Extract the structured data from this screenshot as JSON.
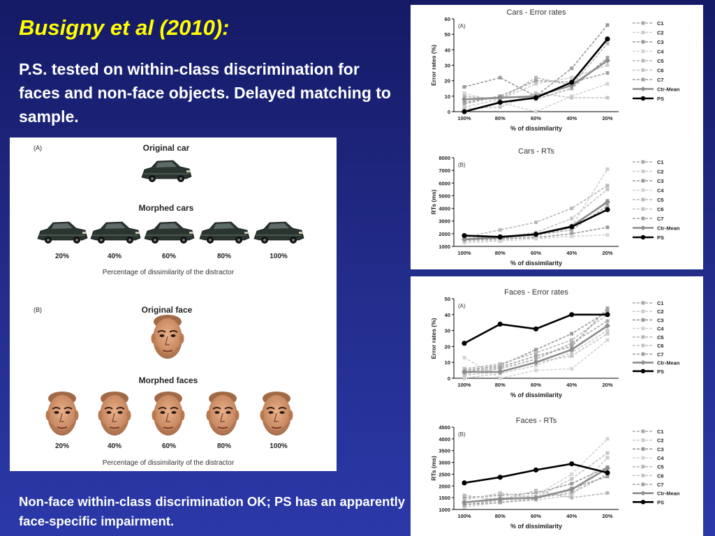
{
  "slide": {
    "title": "Busigny et al (2010):",
    "intro": "P.S. tested on within-class discrimination for faces and non-face objects. Delayed matching to sample.",
    "conclusion": "Non-face within-class discrimination OK; PS has an apparently face-specific impairment."
  },
  "stimuli": {
    "panel_a": {
      "tag": "(A)",
      "original_label": "Original car",
      "morphed_label": "Morphed cars",
      "levels": [
        "20%",
        "40%",
        "60%",
        "80%",
        "100%"
      ],
      "caption": "Percentage of dissimilarity of the distractor"
    },
    "panel_b": {
      "tag": "(B)",
      "original_label": "Original face",
      "morphed_label": "Morphed faces",
      "levels": [
        "20%",
        "40%",
        "60%",
        "80%",
        "100%"
      ],
      "caption": "Percentage of dissimilarity of the distractor"
    }
  },
  "chart_data": [
    {
      "type": "line",
      "title": "Cars - Error rates",
      "panel_tag": "(A)",
      "xlabel": "% of dissimilarity",
      "ylabel": "Error rates (%)",
      "categories": [
        "100%",
        "80%",
        "60%",
        "40%",
        "20%"
      ],
      "ylim": [
        0,
        60
      ],
      "yticks": [
        0,
        10,
        20,
        30,
        40,
        50,
        60
      ],
      "legend_position": "right",
      "series": [
        {
          "name": "C1",
          "values": [
            5,
            10,
            8,
            15,
            35
          ],
          "color": "#a8a8a8"
        },
        {
          "name": "C2",
          "values": [
            3,
            8,
            18,
            22,
            30
          ],
          "color": "#cccccc"
        },
        {
          "name": "C3",
          "values": [
            16,
            22,
            10,
            28,
            56
          ],
          "color": "#999999"
        },
        {
          "name": "C4",
          "values": [
            12,
            6,
            0,
            10,
            18
          ],
          "color": "#d4d4d4"
        },
        {
          "name": "C5",
          "values": [
            10,
            8,
            22,
            17,
            44
          ],
          "color": "#b8b8b8"
        },
        {
          "name": "C6",
          "values": [
            2,
            3,
            12,
            9,
            9
          ],
          "color": "#c4c4c4"
        },
        {
          "name": "C7",
          "values": [
            6,
            10,
            20,
            19,
            25
          ],
          "color": "#a0a0a0"
        },
        {
          "name": "Ctr-Mean",
          "values": [
            8,
            9,
            10,
            17,
            33
          ],
          "color": "#8c8c8c"
        },
        {
          "name": "PS",
          "values": [
            0,
            6,
            9,
            19,
            47
          ],
          "color": "#000000"
        }
      ]
    },
    {
      "type": "line",
      "title": "Cars - RTs",
      "panel_tag": "(B)",
      "xlabel": "% of dissimilarity",
      "ylabel": "RTs (ms)",
      "categories": [
        "100%",
        "80%",
        "60%",
        "40%",
        "20%"
      ],
      "ylim": [
        1000,
        8000
      ],
      "yticks": [
        1000,
        2000,
        3000,
        4000,
        5000,
        6000,
        7000,
        8000
      ],
      "legend_position": "right",
      "series": [
        {
          "name": "C1",
          "values": [
            1600,
            1700,
            1900,
            2300,
            4200
          ],
          "color": "#a8a8a8"
        },
        {
          "name": "C2",
          "values": [
            1400,
            1500,
            1800,
            2600,
            7100
          ],
          "color": "#cccccc"
        },
        {
          "name": "C3",
          "values": [
            1500,
            1600,
            1700,
            2000,
            2500
          ],
          "color": "#999999"
        },
        {
          "name": "C4",
          "values": [
            1300,
            1400,
            1600,
            1800,
            1900
          ],
          "color": "#d4d4d4"
        },
        {
          "name": "C5",
          "values": [
            1700,
            2300,
            2900,
            4000,
            5800
          ],
          "color": "#b8b8b8"
        },
        {
          "name": "C6",
          "values": [
            1500,
            1700,
            2100,
            3200,
            5500
          ],
          "color": "#c4c4c4"
        },
        {
          "name": "C7",
          "values": [
            1600,
            1800,
            1900,
            2500,
            4600
          ],
          "color": "#a0a0a0"
        },
        {
          "name": "Ctr-Mean",
          "values": [
            1550,
            1700,
            1950,
            2600,
            4500
          ],
          "color": "#8c8c8c"
        },
        {
          "name": "PS",
          "values": [
            1850,
            1750,
            1950,
            2550,
            3900
          ],
          "color": "#000000"
        }
      ]
    },
    {
      "type": "line",
      "title": "Faces - Error rates",
      "panel_tag": "(A)",
      "xlabel": "% of dissimilarity",
      "ylabel": "Error rates (%)",
      "categories": [
        "100%",
        "80%",
        "60%",
        "40%",
        "20%"
      ],
      "ylim": [
        0,
        50
      ],
      "yticks": [
        0,
        10,
        20,
        30,
        40,
        50
      ],
      "legend_position": "right",
      "series": [
        {
          "name": "C1",
          "values": [
            3,
            6,
            12,
            22,
            36
          ],
          "color": "#a8a8a8"
        },
        {
          "name": "C2",
          "values": [
            0,
            3,
            8,
            16,
            30
          ],
          "color": "#cccccc"
        },
        {
          "name": "C3",
          "values": [
            5,
            8,
            18,
            28,
            42
          ],
          "color": "#999999"
        },
        {
          "name": "C4",
          "values": [
            13,
            0,
            5,
            6,
            24
          ],
          "color": "#d4d4d4"
        },
        {
          "name": "C5",
          "values": [
            6,
            9,
            16,
            24,
            40
          ],
          "color": "#b8b8b8"
        },
        {
          "name": "C6",
          "values": [
            2,
            4,
            10,
            14,
            28
          ],
          "color": "#c4c4c4"
        },
        {
          "name": "C7",
          "values": [
            4,
            7,
            14,
            20,
            44
          ],
          "color": "#a0a0a0"
        },
        {
          "name": "Ctr-Mean",
          "values": [
            4,
            4,
            10,
            18,
            33
          ],
          "color": "#8c8c8c"
        },
        {
          "name": "PS",
          "values": [
            22,
            34,
            31,
            40,
            40
          ],
          "color": "#000000"
        }
      ]
    },
    {
      "type": "line",
      "title": "Faces - RTs",
      "panel_tag": "(B)",
      "xlabel": "% of dissimilarity",
      "ylabel": "RTs (ms)",
      "categories": [
        "100%",
        "80%",
        "60%",
        "40%",
        "20%"
      ],
      "ylim": [
        1000,
        4500
      ],
      "yticks": [
        1000,
        1500,
        2000,
        2500,
        3000,
        3500,
        4000,
        4500
      ],
      "legend_position": "right",
      "series": [
        {
          "name": "C1",
          "values": [
            1200,
            1400,
            1500,
            1700,
            2500
          ],
          "color": "#a8a8a8"
        },
        {
          "name": "C2",
          "values": [
            1100,
            1300,
            1400,
            1600,
            3200
          ],
          "color": "#cccccc"
        },
        {
          "name": "C3",
          "values": [
            1500,
            1600,
            1700,
            2100,
            2800
          ],
          "color": "#999999"
        },
        {
          "name": "C4",
          "values": [
            1300,
            1500,
            1600,
            2500,
            4000
          ],
          "color": "#d4d4d4"
        },
        {
          "name": "C5",
          "values": [
            1600,
            1400,
            1800,
            1500,
            1700
          ],
          "color": "#b8b8b8"
        },
        {
          "name": "C6",
          "values": [
            1400,
            1700,
            1500,
            2300,
            3400
          ],
          "color": "#c4c4c4"
        },
        {
          "name": "C7",
          "values": [
            1200,
            1300,
            1450,
            1900,
            2400
          ],
          "color": "#a0a0a0"
        },
        {
          "name": "Ctr-Mean",
          "values": [
            1300,
            1450,
            1500,
            1850,
            2750
          ],
          "color": "#8c8c8c"
        },
        {
          "name": "PS",
          "values": [
            2130,
            2370,
            2680,
            2940,
            2560
          ],
          "color": "#000000"
        }
      ]
    }
  ]
}
